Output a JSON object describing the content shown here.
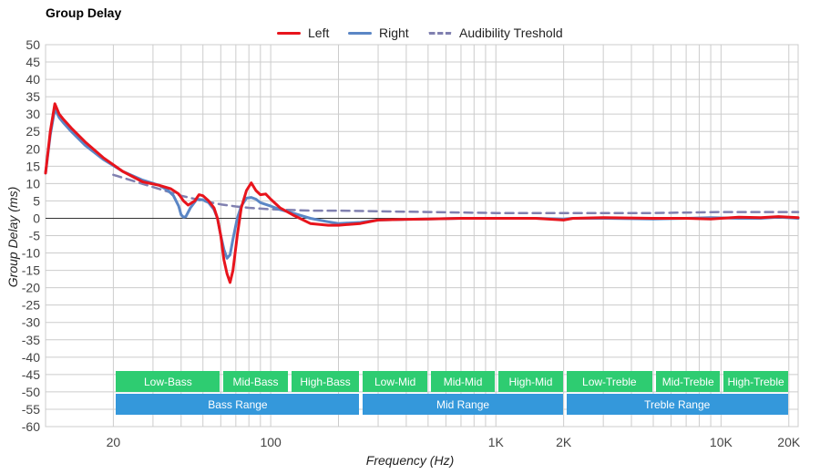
{
  "chart_data": {
    "type": "line",
    "title": "Group Delay",
    "xlabel": "Frequency (Hz)",
    "ylabel": "Group Delay (ms)",
    "x_scale": "log",
    "xlim": [
      10,
      22000
    ],
    "ylim": [
      -60,
      50
    ],
    "x_ticks": [
      {
        "value": 20,
        "label": "20"
      },
      {
        "value": 100,
        "label": "100"
      },
      {
        "value": 1000,
        "label": "1K"
      },
      {
        "value": 2000,
        "label": "2K"
      },
      {
        "value": 10000,
        "label": "10K"
      },
      {
        "value": 20000,
        "label": "20K"
      }
    ],
    "y_ticks": [
      50,
      45,
      40,
      35,
      30,
      25,
      20,
      15,
      10,
      5,
      0,
      -5,
      -10,
      -15,
      -20,
      -25,
      -30,
      -35,
      -40,
      -45,
      -50,
      -55,
      -60
    ],
    "grid": true,
    "legend_position": "top-center",
    "series": [
      {
        "name": "Left",
        "color": "#e8141c",
        "style": "solid",
        "points": [
          [
            10,
            13
          ],
          [
            10.5,
            25
          ],
          [
            11,
            33
          ],
          [
            11.5,
            30
          ],
          [
            12,
            28.5
          ],
          [
            13,
            26
          ],
          [
            15,
            22
          ],
          [
            18,
            17.5
          ],
          [
            22,
            13.5
          ],
          [
            27,
            10.5
          ],
          [
            32,
            9.5
          ],
          [
            36,
            8.5
          ],
          [
            39,
            7
          ],
          [
            41,
            5
          ],
          [
            43,
            3.8
          ],
          [
            46,
            5
          ],
          [
            48,
            6.8
          ],
          [
            50,
            6.5
          ],
          [
            53,
            5
          ],
          [
            56,
            3
          ],
          [
            58,
            0
          ],
          [
            60,
            -5
          ],
          [
            62,
            -12
          ],
          [
            64,
            -16
          ],
          [
            66,
            -18.5
          ],
          [
            68,
            -15
          ],
          [
            71,
            -5
          ],
          [
            74,
            3
          ],
          [
            78,
            8
          ],
          [
            82,
            10.2
          ],
          [
            86,
            8
          ],
          [
            90,
            6.8
          ],
          [
            95,
            7
          ],
          [
            100,
            5.5
          ],
          [
            110,
            3
          ],
          [
            125,
            1
          ],
          [
            150,
            -1.5
          ],
          [
            180,
            -2
          ],
          [
            200,
            -2
          ],
          [
            250,
            -1.5
          ],
          [
            300,
            -0.5
          ],
          [
            400,
            -0.3
          ],
          [
            500,
            -0.2
          ],
          [
            700,
            0
          ],
          [
            1000,
            0
          ],
          [
            1500,
            0
          ],
          [
            2000,
            -0.5
          ],
          [
            2200,
            0
          ],
          [
            3000,
            0.2
          ],
          [
            5000,
            0
          ],
          [
            7000,
            0
          ],
          [
            9000,
            -0.2
          ],
          [
            12000,
            0.3
          ],
          [
            15000,
            0.2
          ],
          [
            18000,
            0.5
          ],
          [
            22000,
            0.2
          ]
        ]
      },
      {
        "name": "Right",
        "color": "#5b86c5",
        "style": "solid",
        "points": [
          [
            10,
            13
          ],
          [
            10.5,
            24
          ],
          [
            11,
            31.5
          ],
          [
            11.5,
            29
          ],
          [
            12,
            27.5
          ],
          [
            13,
            25
          ],
          [
            15,
            21
          ],
          [
            18,
            17
          ],
          [
            22,
            13.5
          ],
          [
            27,
            11
          ],
          [
            32,
            9.5
          ],
          [
            35,
            8
          ],
          [
            37,
            6.5
          ],
          [
            39,
            3.5
          ],
          [
            40,
            1
          ],
          [
            41,
            0.3
          ],
          [
            42,
            0.5
          ],
          [
            44,
            3
          ],
          [
            47,
            5.5
          ],
          [
            50,
            5.3
          ],
          [
            53,
            4.5
          ],
          [
            56,
            2.5
          ],
          [
            58,
            0
          ],
          [
            60,
            -5
          ],
          [
            62,
            -9
          ],
          [
            64,
            -11.5
          ],
          [
            66,
            -10.5
          ],
          [
            68,
            -6
          ],
          [
            71,
            0
          ],
          [
            74,
            3.5
          ],
          [
            78,
            5.8
          ],
          [
            82,
            6
          ],
          [
            86,
            5.5
          ],
          [
            90,
            4.5
          ],
          [
            100,
            3.5
          ],
          [
            110,
            2.5
          ],
          [
            125,
            1.5
          ],
          [
            150,
            0
          ],
          [
            180,
            -1
          ],
          [
            200,
            -1.5
          ],
          [
            250,
            -1.2
          ],
          [
            300,
            -0.5
          ],
          [
            400,
            -0.3
          ],
          [
            500,
            -0.2
          ],
          [
            700,
            0
          ],
          [
            1000,
            0
          ],
          [
            1500,
            0
          ],
          [
            2000,
            -0.2
          ],
          [
            2200,
            0
          ],
          [
            3000,
            0
          ],
          [
            5000,
            -0.2
          ],
          [
            7000,
            0
          ],
          [
            9000,
            0.2
          ],
          [
            12000,
            0
          ],
          [
            15000,
            0
          ],
          [
            18000,
            0.3
          ],
          [
            22000,
            0
          ]
        ]
      },
      {
        "name": "Audibility Treshold",
        "color": "#8080b0",
        "style": "dashed",
        "points": [
          [
            20,
            12.5
          ],
          [
            30,
            9
          ],
          [
            40,
            6.5
          ],
          [
            50,
            5
          ],
          [
            60,
            4
          ],
          [
            70,
            3.4
          ],
          [
            80,
            3
          ],
          [
            100,
            2.6
          ],
          [
            150,
            2.2
          ],
          [
            200,
            2.2
          ],
          [
            300,
            2
          ],
          [
            500,
            1.8
          ],
          [
            1000,
            1.5
          ],
          [
            2000,
            1.5
          ],
          [
            5000,
            1.5
          ],
          [
            10000,
            1.8
          ],
          [
            22000,
            1.8
          ]
        ]
      }
    ],
    "range_bands": {
      "sub": [
        {
          "label": "Low-Bass",
          "from": 20,
          "to": 60
        },
        {
          "label": "Mid-Bass",
          "from": 60,
          "to": 120
        },
        {
          "label": "High-Bass",
          "from": 120,
          "to": 250
        },
        {
          "label": "Low-Mid",
          "from": 250,
          "to": 500
        },
        {
          "label": "Mid-Mid",
          "from": 500,
          "to": 1000
        },
        {
          "label": "High-Mid",
          "from": 1000,
          "to": 2000
        },
        {
          "label": "Low-Treble",
          "from": 2000,
          "to": 5000
        },
        {
          "label": "Mid-Treble",
          "from": 5000,
          "to": 10000
        },
        {
          "label": "High-Treble",
          "from": 10000,
          "to": 20000
        }
      ],
      "main": [
        {
          "label": "Bass Range",
          "from": 20,
          "to": 250
        },
        {
          "label": "Mid Range",
          "from": 250,
          "to": 2000
        },
        {
          "label": "Treble Range",
          "from": 2000,
          "to": 20000
        }
      ]
    }
  }
}
